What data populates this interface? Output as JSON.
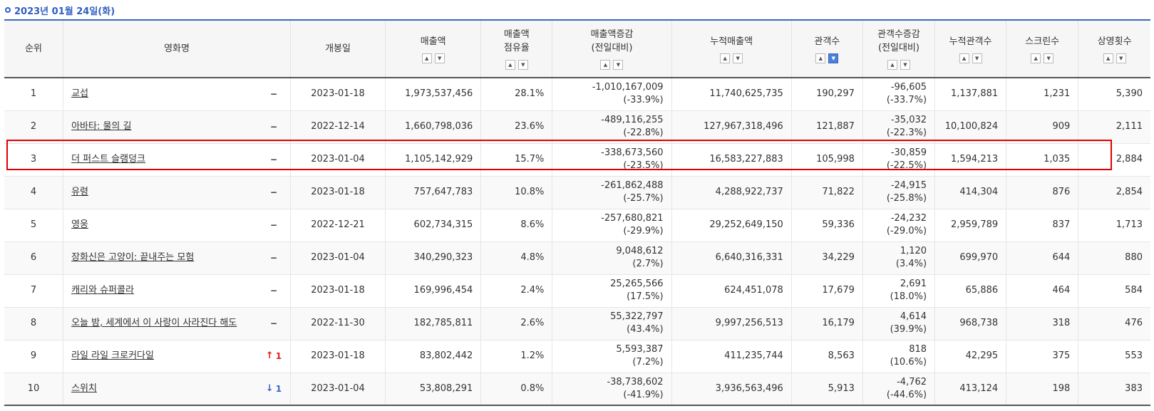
{
  "date_header": "2023년 01월 24일(화)",
  "headers": {
    "rank": "순위",
    "title": "영화명",
    "release": "개봉일",
    "sales": "매출액",
    "share_1": "매출액",
    "share_2": "점유율",
    "sales_change_1": "매출액증감",
    "sales_change_2": "(전일대비)",
    "cum_sales": "누적매출액",
    "audience": "관객수",
    "aud_change_1": "관객수증감",
    "aud_change_2": "(전일대비)",
    "cum_audience": "누적관객수",
    "screens": "스크린수",
    "shows": "상영횟수"
  },
  "sort": {
    "up": "▲",
    "down": "▼",
    "active_column": "audience",
    "active_direction": "down"
  },
  "rows": [
    {
      "rank": "1",
      "title": "교섭",
      "change": "−",
      "change_dir": "none",
      "release": "2023-01-18",
      "sales": "1,973,537,456",
      "share": "28.1%",
      "sales_diff": "-1,010,167,009",
      "sales_diff_pct": "(-33.9%)",
      "cum_sales": "11,740,625,735",
      "audience": "190,297",
      "aud_diff": "-96,605",
      "aud_diff_pct": "(-33.7%)",
      "cum_audience": "1,137,881",
      "screens": "1,231",
      "shows": "5,390"
    },
    {
      "rank": "2",
      "title": "아바타: 물의 길",
      "change": "−",
      "change_dir": "none",
      "release": "2022-12-14",
      "sales": "1,660,798,036",
      "share": "23.6%",
      "sales_diff": "-489,116,255",
      "sales_diff_pct": "(-22.8%)",
      "cum_sales": "127,967,318,496",
      "audience": "121,887",
      "aud_diff": "-35,032",
      "aud_diff_pct": "(-22.3%)",
      "cum_audience": "10,100,824",
      "screens": "909",
      "shows": "2,111"
    },
    {
      "rank": "3",
      "title": "더 퍼스트 슬램덩크",
      "change": "−",
      "change_dir": "none",
      "release": "2023-01-04",
      "sales": "1,105,142,929",
      "share": "15.7%",
      "sales_diff": "-338,673,560",
      "sales_diff_pct": "(-23.5%)",
      "cum_sales": "16,583,227,883",
      "audience": "105,998",
      "aud_diff": "-30,859",
      "aud_diff_pct": "(-22.5%)",
      "cum_audience": "1,594,213",
      "screens": "1,035",
      "shows": "2,884"
    },
    {
      "rank": "4",
      "title": "유령",
      "change": "−",
      "change_dir": "none",
      "release": "2023-01-18",
      "sales": "757,647,783",
      "share": "10.8%",
      "sales_diff": "-261,862,488",
      "sales_diff_pct": "(-25.7%)",
      "cum_sales": "4,288,922,737",
      "audience": "71,822",
      "aud_diff": "-24,915",
      "aud_diff_pct": "(-25.8%)",
      "cum_audience": "414,304",
      "screens": "876",
      "shows": "2,854"
    },
    {
      "rank": "5",
      "title": "영웅",
      "change": "−",
      "change_dir": "none",
      "release": "2022-12-21",
      "sales": "602,734,315",
      "share": "8.6%",
      "sales_diff": "-257,680,821",
      "sales_diff_pct": "(-29.9%)",
      "cum_sales": "29,252,649,150",
      "audience": "59,336",
      "aud_diff": "-24,232",
      "aud_diff_pct": "(-29.0%)",
      "cum_audience": "2,959,789",
      "screens": "837",
      "shows": "1,713"
    },
    {
      "rank": "6",
      "title": "장화신은 고양이: 끝내주는 모험",
      "change": "−",
      "change_dir": "none",
      "release": "2023-01-04",
      "sales": "340,290,323",
      "share": "4.8%",
      "sales_diff": "9,048,612",
      "sales_diff_pct": "(2.7%)",
      "cum_sales": "6,640,316,331",
      "audience": "34,229",
      "aud_diff": "1,120",
      "aud_diff_pct": "(3.4%)",
      "cum_audience": "699,970",
      "screens": "644",
      "shows": "880"
    },
    {
      "rank": "7",
      "title": "캐리와 슈퍼콜라",
      "change": "−",
      "change_dir": "none",
      "release": "2023-01-18",
      "sales": "169,996,454",
      "share": "2.4%",
      "sales_diff": "25,265,566",
      "sales_diff_pct": "(17.5%)",
      "cum_sales": "624,451,078",
      "audience": "17,679",
      "aud_diff": "2,691",
      "aud_diff_pct": "(18.0%)",
      "cum_audience": "65,886",
      "screens": "464",
      "shows": "584"
    },
    {
      "rank": "8",
      "title": "오늘 밤, 세계에서 이 사랑이 사라진다 해도",
      "change": "−",
      "change_dir": "none",
      "release": "2022-11-30",
      "sales": "182,785,811",
      "share": "2.6%",
      "sales_diff": "55,322,797",
      "sales_diff_pct": "(43.4%)",
      "cum_sales": "9,997,256,513",
      "audience": "16,179",
      "aud_diff": "4,614",
      "aud_diff_pct": "(39.9%)",
      "cum_audience": "968,738",
      "screens": "318",
      "shows": "476"
    },
    {
      "rank": "9",
      "title": "라일 라일 크로커다일",
      "change": "1",
      "change_dir": "up",
      "release": "2023-01-18",
      "sales": "83,802,442",
      "share": "1.2%",
      "sales_diff": "5,593,387",
      "sales_diff_pct": "(7.2%)",
      "cum_sales": "411,235,744",
      "audience": "8,563",
      "aud_diff": "818",
      "aud_diff_pct": "(10.6%)",
      "cum_audience": "42,295",
      "screens": "375",
      "shows": "553"
    },
    {
      "rank": "10",
      "title": "스위치",
      "change": "1",
      "change_dir": "down",
      "release": "2023-01-04",
      "sales": "53,808,291",
      "share": "0.8%",
      "sales_diff": "-38,738,602",
      "sales_diff_pct": "(-41.9%)",
      "cum_sales": "3,936,563,496",
      "audience": "5,913",
      "aud_diff": "-4,762",
      "aud_diff_pct": "(-44.6%)",
      "cum_audience": "413,124",
      "screens": "198",
      "shows": "383"
    }
  ],
  "highlighted_rank": "3",
  "colors": {
    "accent": "#3a66c4",
    "highlight_border": "#e00000",
    "up": "#e02020",
    "down": "#3a66c4"
  }
}
